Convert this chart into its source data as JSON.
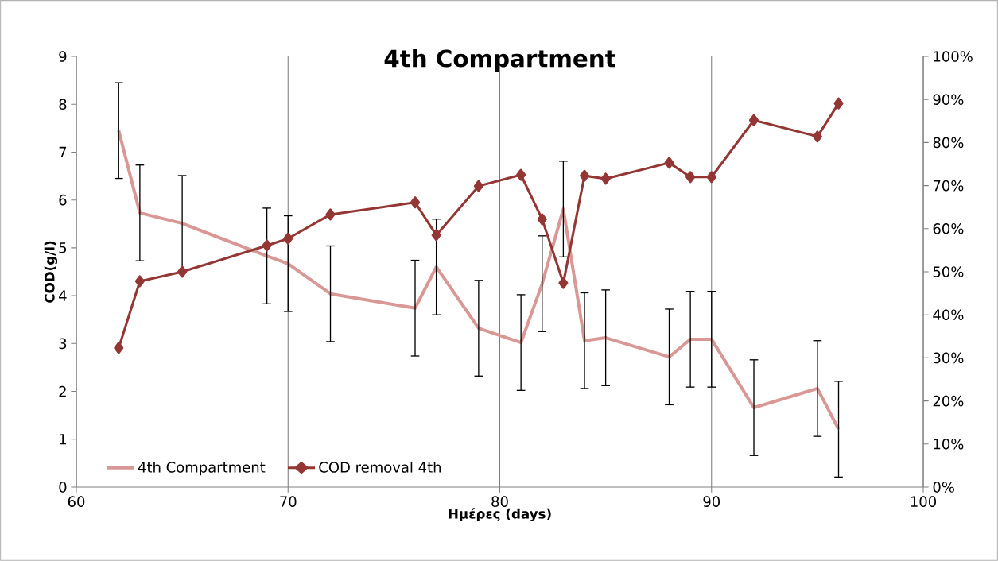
{
  "chart_data": {
    "type": "line",
    "title": "4th Compartment",
    "xlabel": "Ημέρες (days)",
    "ylabel": "COD(g/l)",
    "x": [
      62,
      63,
      65,
      69,
      70,
      72,
      76,
      77,
      79,
      81,
      82,
      83,
      84,
      85,
      88,
      89,
      90,
      92,
      95,
      96
    ],
    "series": [
      {
        "name": "4th Compartment",
        "color": "#d99795",
        "values": [
          7.45,
          5.73,
          5.51,
          4.83,
          4.67,
          4.04,
          3.74,
          4.6,
          3.32,
          3.02,
          4.25,
          5.81,
          3.06,
          3.12,
          2.72,
          3.09,
          3.09,
          1.66,
          2.06,
          1.21
        ],
        "errors": [
          1,
          1,
          1,
          1,
          1,
          1,
          1,
          1,
          1,
          1,
          1,
          1,
          1,
          1,
          1,
          1,
          1,
          1,
          1,
          1
        ]
      },
      {
        "name": "COD removal 4th",
        "color": "#943634",
        "axis": "y2",
        "marker": "diamond",
        "values": [
          32.3,
          47.8,
          50.0,
          56.1,
          57.7,
          63.3,
          66.1,
          58.5,
          69.9,
          72.5,
          62.2,
          47.4,
          72.3,
          71.6,
          75.3,
          72.0,
          72.0,
          85.2,
          81.4,
          89.1
        ]
      }
    ],
    "xlim": [
      60,
      100
    ],
    "xticks": [
      60,
      70,
      80,
      90,
      100
    ],
    "ylim": [
      0,
      9
    ],
    "yticks": [
      0,
      1,
      2,
      3,
      4,
      5,
      6,
      7,
      8,
      9
    ],
    "y2lim": [
      0,
      100
    ],
    "y2ticks": [
      {
        "value": 0,
        "label": "0%"
      },
      {
        "value": 10,
        "label": "10%"
      },
      {
        "value": 20,
        "label": "20%"
      },
      {
        "value": 30,
        "label": "30%"
      },
      {
        "value": 40,
        "label": "40%"
      },
      {
        "value": 50,
        "label": "50%"
      },
      {
        "value": 60,
        "label": "60%"
      },
      {
        "value": 70,
        "label": "70%"
      },
      {
        "value": 80,
        "label": "80%"
      },
      {
        "value": 90,
        "label": "90%"
      },
      {
        "value": 100,
        "label": "100%"
      }
    ],
    "grid": "x",
    "legend": "bottom left",
    "line_style": "solid"
  }
}
